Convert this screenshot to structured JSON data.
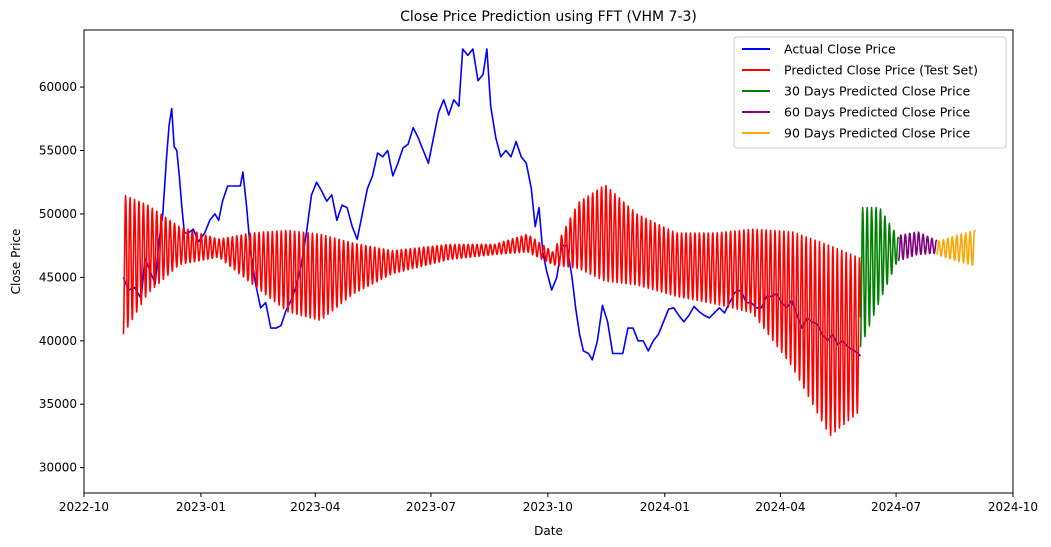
{
  "chart_data": {
    "type": "line",
    "title": "Close Price Prediction using FFT (VHM 7-3)",
    "xlabel": "Date",
    "ylabel": "Close Price",
    "x_range": [
      "2022-10-01",
      "2024-10-01"
    ],
    "ylim": [
      28000,
      64500
    ],
    "x_ticks": [
      "2022-10",
      "2023-01",
      "2023-04",
      "2023-07",
      "2023-10",
      "2024-01",
      "2024-04",
      "2024-07",
      "2024-10"
    ],
    "y_ticks": [
      30000,
      35000,
      40000,
      45000,
      50000,
      55000,
      60000
    ],
    "grid": false,
    "legend_position": "top-right",
    "series": [
      {
        "name": "Actual Close Price",
        "color": "#0000ff",
        "style": "line",
        "points": [
          [
            "2022-11-01",
            45000
          ],
          [
            "2022-11-05",
            44000
          ],
          [
            "2022-11-10",
            44200
          ],
          [
            "2022-11-15",
            43300
          ],
          [
            "2022-11-18",
            46500
          ],
          [
            "2022-11-22",
            45500
          ],
          [
            "2022-11-26",
            44500
          ],
          [
            "2022-11-29",
            47800
          ],
          [
            "2022-12-02",
            50000
          ],
          [
            "2022-12-05",
            54500
          ],
          [
            "2022-12-07",
            57000
          ],
          [
            "2022-12-09",
            58300
          ],
          [
            "2022-12-11",
            55300
          ],
          [
            "2022-12-13",
            55000
          ],
          [
            "2022-12-15",
            53000
          ],
          [
            "2022-12-17",
            50500
          ],
          [
            "2022-12-19",
            48500
          ],
          [
            "2022-12-22",
            48500
          ],
          [
            "2022-12-26",
            48800
          ],
          [
            "2022-12-30",
            47800
          ],
          [
            "2023-01-04",
            48500
          ],
          [
            "2023-01-08",
            49500
          ],
          [
            "2023-01-12",
            50000
          ],
          [
            "2023-01-15",
            49500
          ],
          [
            "2023-01-18",
            51000
          ],
          [
            "2023-01-22",
            52200
          ],
          [
            "2023-01-27",
            52200
          ],
          [
            "2023-02-01",
            52200
          ],
          [
            "2023-02-03",
            53300
          ],
          [
            "2023-02-06",
            50500
          ],
          [
            "2023-02-09",
            47000
          ],
          [
            "2023-02-13",
            44500
          ],
          [
            "2023-02-17",
            42600
          ],
          [
            "2023-02-21",
            43000
          ],
          [
            "2023-02-25",
            41000
          ],
          [
            "2023-03-01",
            41000
          ],
          [
            "2023-03-05",
            41200
          ],
          [
            "2023-03-09",
            42400
          ],
          [
            "2023-03-13",
            43200
          ],
          [
            "2023-03-17",
            44300
          ],
          [
            "2023-03-21",
            46000
          ],
          [
            "2023-03-25",
            48500
          ],
          [
            "2023-03-29",
            51500
          ],
          [
            "2023-04-02",
            52500
          ],
          [
            "2023-04-06",
            51800
          ],
          [
            "2023-04-10",
            51000
          ],
          [
            "2023-04-14",
            51500
          ],
          [
            "2023-04-18",
            49500
          ],
          [
            "2023-04-22",
            50700
          ],
          [
            "2023-04-26",
            50500
          ],
          [
            "2023-04-30",
            49000
          ],
          [
            "2023-05-04",
            48000
          ],
          [
            "2023-05-08",
            50000
          ],
          [
            "2023-05-12",
            52000
          ],
          [
            "2023-05-16",
            53000
          ],
          [
            "2023-05-20",
            54800
          ],
          [
            "2023-05-24",
            54500
          ],
          [
            "2023-05-28",
            55000
          ],
          [
            "2023-06-01",
            53000
          ],
          [
            "2023-06-05",
            54000
          ],
          [
            "2023-06-09",
            55200
          ],
          [
            "2023-06-13",
            55500
          ],
          [
            "2023-06-17",
            56800
          ],
          [
            "2023-06-21",
            56000
          ],
          [
            "2023-06-25",
            55000
          ],
          [
            "2023-06-29",
            54000
          ],
          [
            "2023-07-03",
            56000
          ],
          [
            "2023-07-07",
            58000
          ],
          [
            "2023-07-11",
            59000
          ],
          [
            "2023-07-15",
            57800
          ],
          [
            "2023-07-19",
            59000
          ],
          [
            "2023-07-23",
            58500
          ],
          [
            "2023-07-26",
            63000
          ],
          [
            "2023-07-30",
            62500
          ],
          [
            "2023-08-03",
            63000
          ],
          [
            "2023-08-07",
            60500
          ],
          [
            "2023-08-11",
            61000
          ],
          [
            "2023-08-14",
            63000
          ],
          [
            "2023-08-17",
            58500
          ],
          [
            "2023-08-21",
            56000
          ],
          [
            "2023-08-25",
            54500
          ],
          [
            "2023-08-29",
            55000
          ],
          [
            "2023-09-02",
            54500
          ],
          [
            "2023-09-06",
            55700
          ],
          [
            "2023-09-10",
            54500
          ],
          [
            "2023-09-14",
            54000
          ],
          [
            "2023-09-18",
            52000
          ],
          [
            "2023-09-21",
            49000
          ],
          [
            "2023-09-24",
            50500
          ],
          [
            "2023-09-27",
            47000
          ],
          [
            "2023-09-30",
            45500
          ],
          [
            "2023-10-04",
            44000
          ],
          [
            "2023-10-08",
            45000
          ],
          [
            "2023-10-12",
            47500
          ],
          [
            "2023-10-16",
            47500
          ],
          [
            "2023-10-20",
            45000
          ],
          [
            "2023-10-23",
            42500
          ],
          [
            "2023-10-26",
            40500
          ],
          [
            "2023-10-29",
            39200
          ],
          [
            "2023-11-02",
            39000
          ],
          [
            "2023-11-05",
            38500
          ],
          [
            "2023-11-09",
            40000
          ],
          [
            "2023-11-13",
            42800
          ],
          [
            "2023-11-17",
            41500
          ],
          [
            "2023-11-21",
            39000
          ],
          [
            "2023-11-25",
            39000
          ],
          [
            "2023-11-29",
            39000
          ],
          [
            "2023-12-03",
            41000
          ],
          [
            "2023-12-07",
            41000
          ],
          [
            "2023-12-11",
            40000
          ],
          [
            "2023-12-15",
            40000
          ],
          [
            "2023-12-19",
            39200
          ],
          [
            "2023-12-23",
            40000
          ],
          [
            "2023-12-27",
            40500
          ],
          [
            "2023-12-31",
            41500
          ],
          [
            "2024-01-04",
            42500
          ],
          [
            "2024-01-08",
            42600
          ],
          [
            "2024-01-12",
            42000
          ],
          [
            "2024-01-16",
            41500
          ],
          [
            "2024-01-20",
            42000
          ],
          [
            "2024-01-24",
            42700
          ],
          [
            "2024-01-28",
            42300
          ],
          [
            "2024-02-01",
            42000
          ],
          [
            "2024-02-05",
            41800
          ],
          [
            "2024-02-09",
            42200
          ],
          [
            "2024-02-13",
            42600
          ],
          [
            "2024-02-17",
            42200
          ],
          [
            "2024-02-21",
            43000
          ],
          [
            "2024-02-25",
            43800
          ],
          [
            "2024-03-01",
            44000
          ],
          [
            "2024-03-05",
            43000
          ],
          [
            "2024-03-09",
            43000
          ],
          [
            "2024-03-13",
            42600
          ],
          [
            "2024-03-17",
            42600
          ],
          [
            "2024-03-21",
            43500
          ],
          [
            "2024-03-25",
            43500
          ],
          [
            "2024-03-29",
            43700
          ],
          [
            "2024-04-02",
            43000
          ],
          [
            "2024-04-06",
            42600
          ],
          [
            "2024-04-10",
            43200
          ],
          [
            "2024-04-14",
            42000
          ],
          [
            "2024-04-18",
            41000
          ],
          [
            "2024-04-22",
            41800
          ],
          [
            "2024-04-26",
            41500
          ],
          [
            "2024-04-30",
            41300
          ],
          [
            "2024-05-04",
            40500
          ],
          [
            "2024-05-08",
            40000
          ],
          [
            "2024-05-12",
            40500
          ],
          [
            "2024-05-16",
            39700
          ],
          [
            "2024-05-20",
            40000
          ],
          [
            "2024-05-24",
            39500
          ],
          [
            "2024-05-28",
            39300
          ],
          [
            "2024-06-01",
            39000
          ],
          [
            "2024-06-03",
            38800
          ]
        ]
      },
      {
        "name": "Predicted Close Price (Test Set)",
        "color": "#ff0000",
        "style": "oscillation",
        "start": "2022-11-01",
        "end": "2024-06-03",
        "period_days": 3.5,
        "envelope": [
          [
            "2022-11-01",
            46000,
            5500
          ],
          [
            "2022-11-20",
            47200,
            3500
          ],
          [
            "2022-12-15",
            47500,
            1500
          ],
          [
            "2023-01-15",
            47300,
            700
          ],
          [
            "2023-02-10",
            46500,
            2000
          ],
          [
            "2023-03-10",
            45500,
            3200
          ],
          [
            "2023-04-05",
            45000,
            3400
          ],
          [
            "2023-05-01",
            45700,
            2000
          ],
          [
            "2023-06-01",
            46200,
            900
          ],
          [
            "2023-07-15",
            47000,
            600
          ],
          [
            "2023-08-20",
            47200,
            400
          ],
          [
            "2023-09-15",
            47700,
            700
          ],
          [
            "2023-10-05",
            46500,
            500
          ],
          [
            "2023-10-25",
            48300,
            2600
          ],
          [
            "2023-11-15",
            48500,
            3800
          ],
          [
            "2023-12-10",
            47200,
            2800
          ],
          [
            "2024-01-10",
            46000,
            2500
          ],
          [
            "2024-02-10",
            45700,
            2800
          ],
          [
            "2024-03-10",
            45500,
            3300
          ],
          [
            "2024-04-10",
            43300,
            5300
          ],
          [
            "2024-05-10",
            40000,
            7500
          ],
          [
            "2024-06-03",
            40500,
            6000
          ]
        ]
      },
      {
        "name": "30 Days Predicted Close Price",
        "color": "#008000",
        "style": "oscillation",
        "start": "2024-06-03",
        "end": "2024-07-03",
        "period_days": 3.5,
        "envelope": [
          [
            "2024-06-03",
            45000,
            5500
          ],
          [
            "2024-06-18",
            46800,
            3700
          ],
          [
            "2024-07-03",
            47300,
            800
          ]
        ]
      },
      {
        "name": "60 Days Predicted Close Price",
        "color": "#800080",
        "style": "oscillation",
        "start": "2024-07-03",
        "end": "2024-08-02",
        "period_days": 3.5,
        "envelope": [
          [
            "2024-07-03",
            47300,
            1000
          ],
          [
            "2024-07-18",
            47700,
            900
          ],
          [
            "2024-08-02",
            47400,
            500
          ]
        ]
      },
      {
        "name": "90 Days Predicted Close Price",
        "color": "#ffa500",
        "style": "oscillation",
        "start": "2024-08-02",
        "end": "2024-09-01",
        "period_days": 3.5,
        "envelope": [
          [
            "2024-08-02",
            47300,
            500
          ],
          [
            "2024-08-17",
            47300,
            1000
          ],
          [
            "2024-09-01",
            47300,
            1400
          ]
        ]
      }
    ]
  }
}
